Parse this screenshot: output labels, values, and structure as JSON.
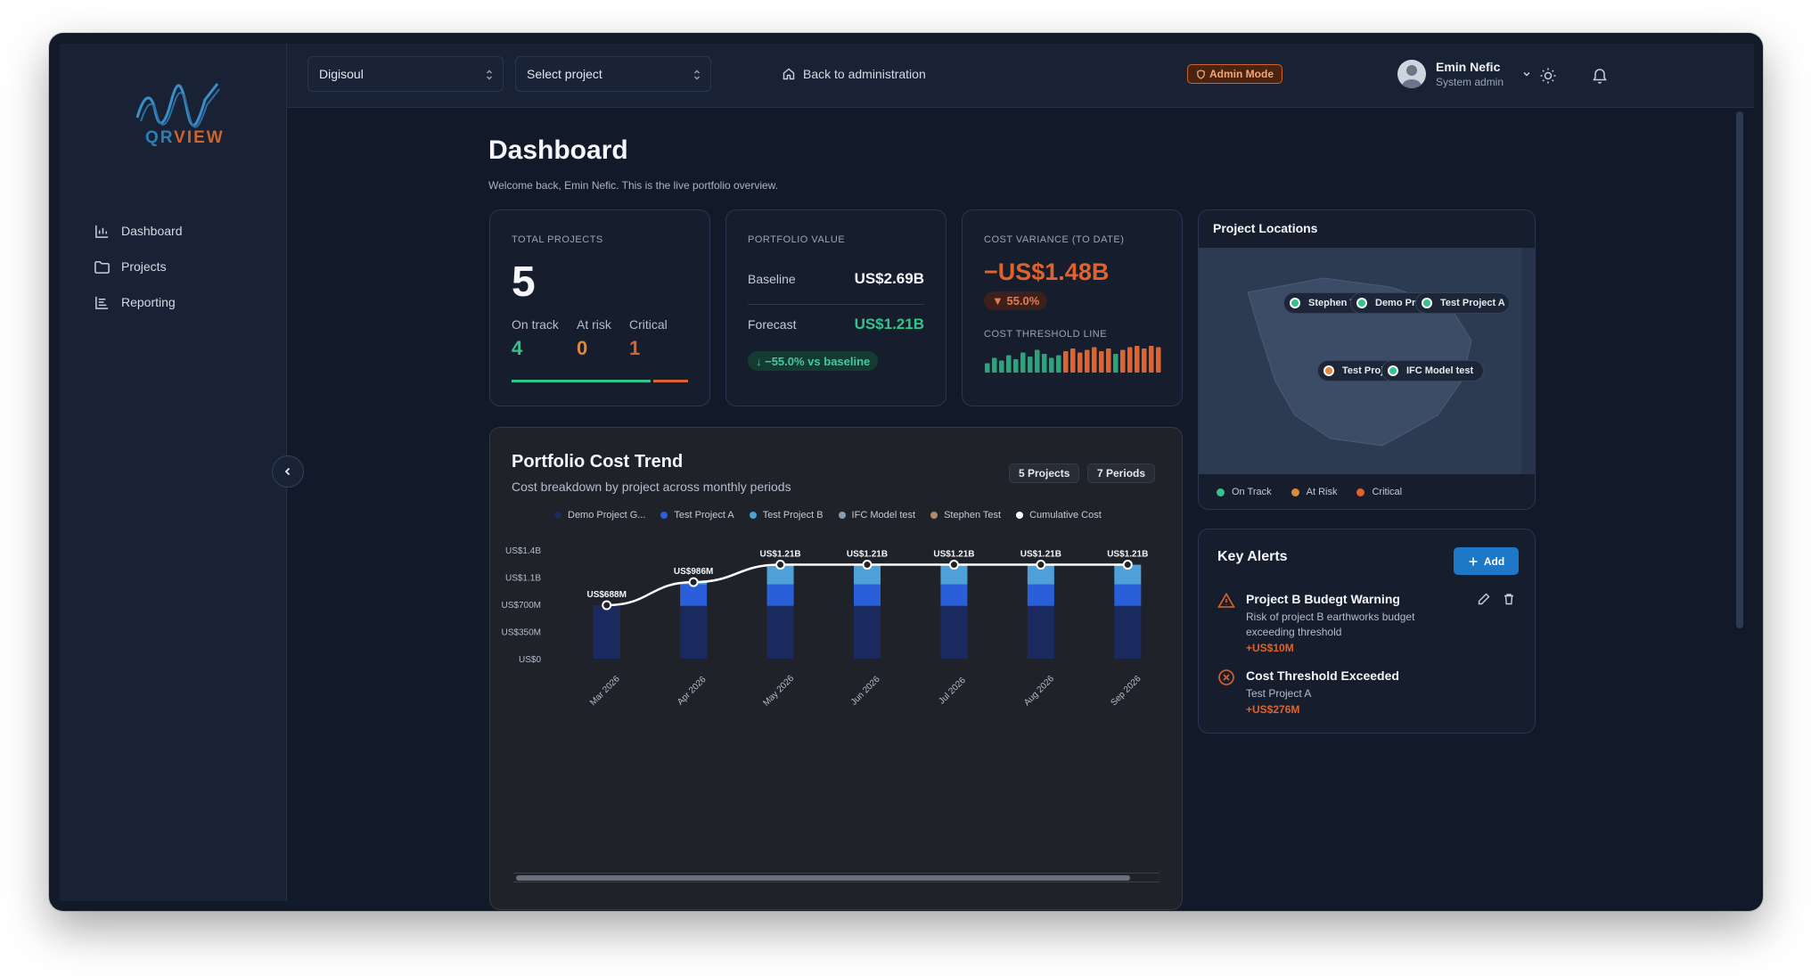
{
  "sidebar": {
    "logo_qr": "QR",
    "logo_view": "VIEW",
    "items": [
      {
        "label": "Dashboard",
        "icon": "bar-chart-icon"
      },
      {
        "label": "Projects",
        "icon": "folder-icon"
      },
      {
        "label": "Reporting",
        "icon": "reporting-icon"
      }
    ]
  },
  "topbar": {
    "org_select": "Digisoul",
    "project_select": "Select project",
    "back_link": "Back to administration",
    "admin_badge": "Admin Mode",
    "user_name": "Emin Nefic",
    "user_role": "System admin"
  },
  "page": {
    "title": "Dashboard",
    "subtitle": "Welcome back, Emin Nefic. This is the live portfolio overview."
  },
  "total_projects": {
    "label": "TOTAL PROJECTS",
    "value": "5",
    "on_track_label": "On track",
    "on_track": "4",
    "at_risk_label": "At risk",
    "at_risk": "0",
    "critical_label": "Critical",
    "critical": "1",
    "progress_shares": {
      "on_track": 0.8,
      "at_risk": 0,
      "critical": 0.2
    }
  },
  "portfolio_value": {
    "label": "PORTFOLIO VALUE",
    "baseline_label": "Baseline",
    "baseline": "US$2.69B",
    "forecast_label": "Forecast",
    "forecast": "US$1.21B",
    "delta": "↓ −55.0% vs baseline"
  },
  "cost_variance": {
    "label": "COST VARIANCE (TO DATE)",
    "value": "−US$1.48B",
    "badge": "▼ 55.0%",
    "threshold_label": "COST THRESHOLD LINE",
    "threshold_bars": [
      {
        "v": 0.35,
        "s": "green"
      },
      {
        "v": 0.55,
        "s": "green"
      },
      {
        "v": 0.45,
        "s": "green"
      },
      {
        "v": 0.65,
        "s": "green"
      },
      {
        "v": 0.5,
        "s": "green"
      },
      {
        "v": 0.75,
        "s": "green"
      },
      {
        "v": 0.6,
        "s": "green"
      },
      {
        "v": 0.85,
        "s": "green"
      },
      {
        "v": 0.7,
        "s": "green"
      },
      {
        "v": 0.55,
        "s": "green"
      },
      {
        "v": 0.65,
        "s": "green"
      },
      {
        "v": 0.8,
        "s": "orange"
      },
      {
        "v": 0.9,
        "s": "orange"
      },
      {
        "v": 0.75,
        "s": "orange"
      },
      {
        "v": 0.85,
        "s": "orange"
      },
      {
        "v": 0.95,
        "s": "orange"
      },
      {
        "v": 0.8,
        "s": "orange"
      },
      {
        "v": 0.9,
        "s": "orange"
      },
      {
        "v": 0.7,
        "s": "green"
      },
      {
        "v": 0.85,
        "s": "orange"
      },
      {
        "v": 0.95,
        "s": "orange"
      },
      {
        "v": 1.0,
        "s": "orange"
      },
      {
        "v": 0.9,
        "s": "orange"
      },
      {
        "v": 1.0,
        "s": "orange"
      },
      {
        "v": 0.95,
        "s": "orange"
      }
    ]
  },
  "cost_trend": {
    "title": "Portfolio Cost Trend",
    "subtitle": "Cost breakdown by project across monthly periods",
    "chip_projects": "5 Projects",
    "chip_periods": "7 Periods"
  },
  "chart_data": {
    "type": "bar",
    "stacked": true,
    "categories": [
      "Mar 2026",
      "Apr 2026",
      "May 2026",
      "Jun 2026",
      "Jul 2026",
      "Aug 2026",
      "Sep 2026"
    ],
    "y_ticks": [
      "US$0",
      "US$350M",
      "US$700M",
      "US$1.1B",
      "US$1.4B"
    ],
    "ylim": [
      0,
      1400
    ],
    "series": [
      {
        "name": "Demo Project G...",
        "color": "#1b2a5e",
        "values": [
          688,
          680,
          680,
          680,
          680,
          680,
          680
        ]
      },
      {
        "name": "Test Project A",
        "color": "#2b5fd9",
        "values": [
          0,
          276,
          276,
          276,
          276,
          276,
          276
        ]
      },
      {
        "name": "Test Project B",
        "color": "#4f9fd9",
        "values": [
          0,
          30,
          254,
          254,
          254,
          254,
          254
        ]
      },
      {
        "name": "IFC Model test",
        "color": "#8a9bb8",
        "values": [
          0,
          0,
          0,
          0,
          0,
          0,
          0
        ]
      },
      {
        "name": "Stephen Test",
        "color": "#b08a6a",
        "values": [
          0,
          0,
          0,
          0,
          0,
          0,
          0
        ]
      }
    ],
    "cumulative": {
      "name": "Cumulative Cost",
      "color": "#ffffff",
      "values": [
        688,
        986,
        1210,
        1210,
        1210,
        1210,
        1210
      ],
      "labels": [
        "US$688M",
        "US$986M",
        "US$1.21B",
        "US$1.21B",
        "US$1.21B",
        "US$1.21B",
        "US$1.21B"
      ]
    }
  },
  "locations": {
    "title": "Project Locations",
    "markers": [
      {
        "label": "Stephen Test",
        "status": "on-track"
      },
      {
        "label": "Demo Project G",
        "status": "on-track"
      },
      {
        "label": "Test Project A",
        "status": "on-track"
      },
      {
        "label": "Test Project B",
        "status": "critical"
      },
      {
        "label": "IFC Model test",
        "status": "on-track"
      }
    ],
    "legend": [
      {
        "label": "On Track",
        "color": "#34c48b"
      },
      {
        "label": "At Risk",
        "color": "#e0883c"
      },
      {
        "label": "Critical",
        "color": "#e0622c"
      }
    ]
  },
  "alerts": {
    "title": "Key Alerts",
    "add_label": "Add",
    "items": [
      {
        "title": "Project B Budegt Warning",
        "desc": "Risk of project B earthworks budget exceeding threshold",
        "amount": "+US$10M",
        "icon": "warning-triangle-icon"
      },
      {
        "title": "Cost Threshold Exceeded",
        "desc": "Test Project A",
        "amount": "+US$276M",
        "icon": "x-circle-icon"
      }
    ]
  }
}
